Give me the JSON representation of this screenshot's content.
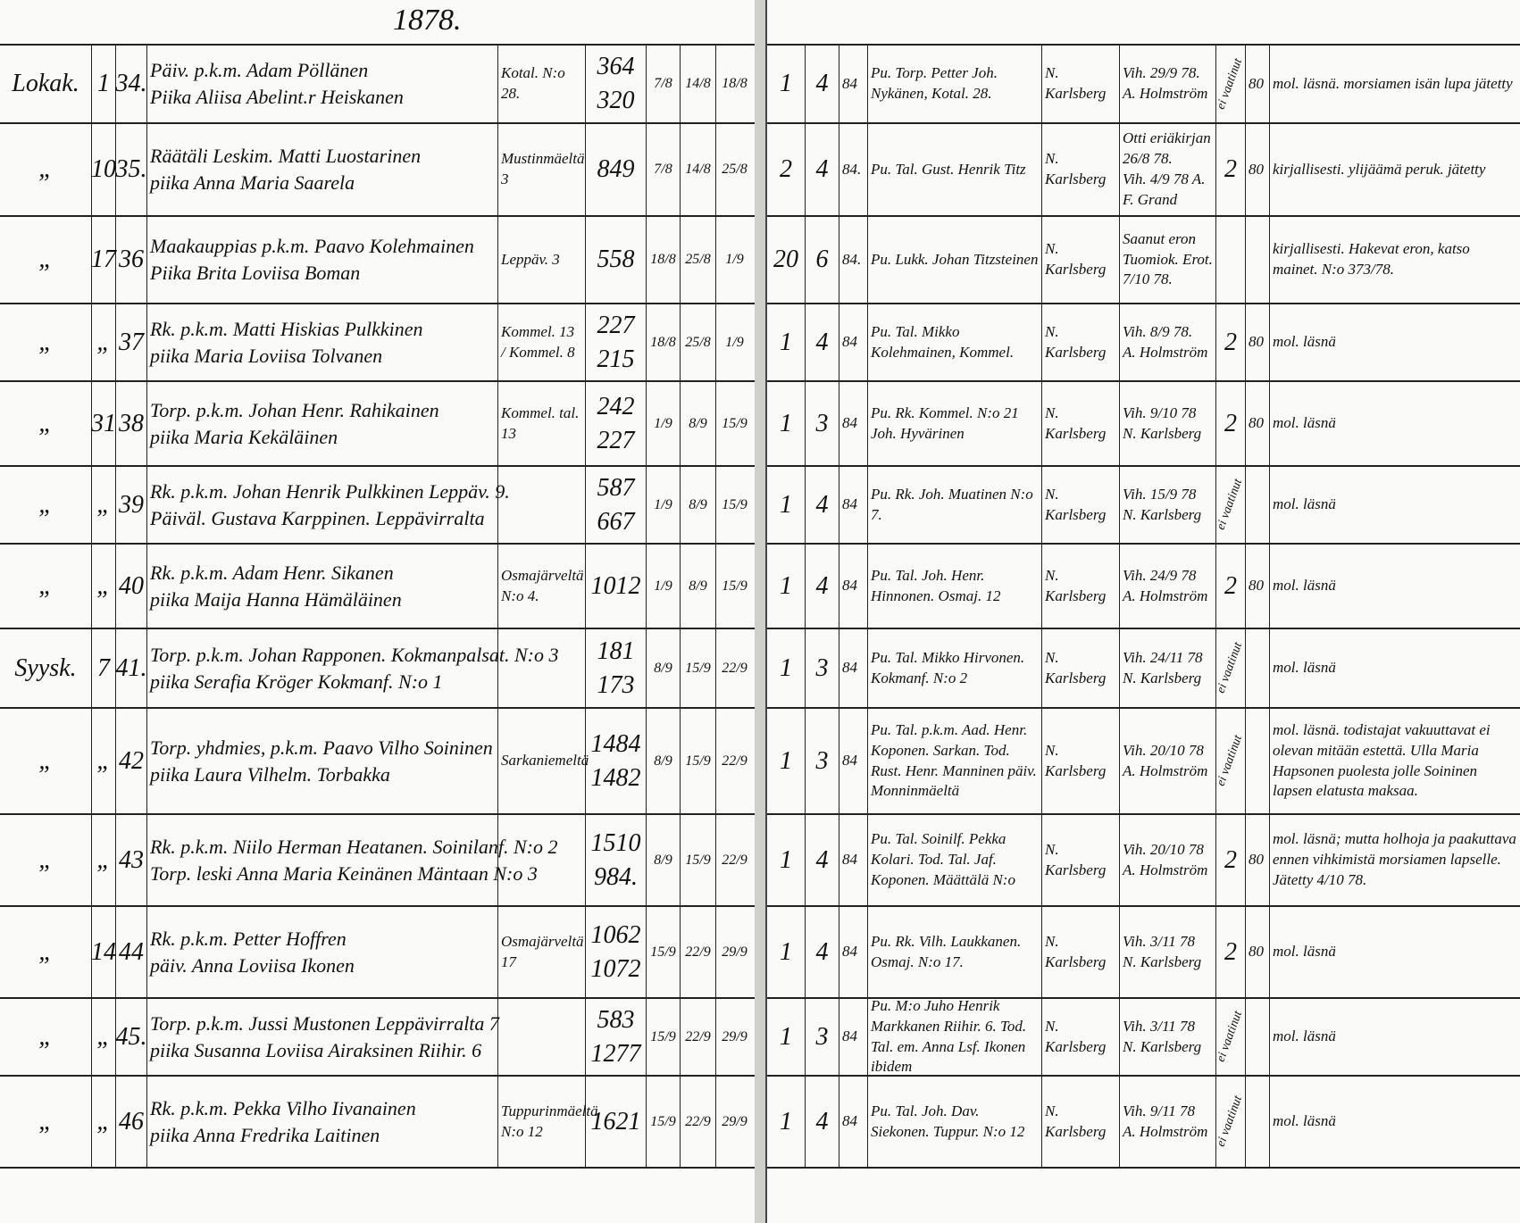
{
  "year": "1878.",
  "entries": [
    {
      "month": "Lokak.",
      "day": "1",
      "no": "34.",
      "groom": "Päiv. p.k.m. Adam Pöllänen",
      "bride": "Piika Aliisa Abelint.r Heiskanen",
      "residence": "Kotal. N:o 28.",
      "nums": [
        "364",
        "320"
      ],
      "banns": [
        "7/8",
        "14/8",
        "18/8"
      ],
      "a": "1",
      "b": "4",
      "c": "84",
      "witness": "Pu. Torp. Petter Joh. Nykänen, Kotal. 28.",
      "official": "N. Karlsberg",
      "vih": [
        "Vih. 29/9 78.",
        "A. Holmström"
      ],
      "x": "",
      "y": "80",
      "ei": "ei vaatinut",
      "notes": "mol. läsnä. morsiamen isän lupa jätetty"
    },
    {
      "month": "„",
      "day": "10",
      "no": "35.",
      "groom": "Räätäli Leskim. Matti Luostarinen",
      "bride": "piika Anna Maria Saarela",
      "residence": "Mustinmäeltä 3",
      "nums": [
        "849",
        ""
      ],
      "banns": [
        "7/8",
        "14/8",
        "25/8"
      ],
      "a": "2",
      "b": "4",
      "c": "84.",
      "witness": "Pu. Tal. Gust. Henrik Titz",
      "official": "N. Karlsberg",
      "vih": [
        "Otti eriäkirjan 26/8 78.",
        "Vih. 4/9 78 A. F. Grand"
      ],
      "x": "2",
      "y": "80",
      "ei": "",
      "notes": "kirjallisesti. ylijäämä peruk. jätetty"
    },
    {
      "month": "„",
      "day": "17",
      "no": "36",
      "groom": "Maakauppias p.k.m. Paavo Kolehmainen",
      "bride": "Piika Brita Loviisa Boman",
      "residence": "Leppäv. 3",
      "nums": [
        "558",
        ""
      ],
      "banns": [
        "18/8",
        "25/8",
        "1/9"
      ],
      "a": "20",
      "b": "6",
      "c": "84.",
      "witness": "Pu. Lukk. Johan Titzsteinen",
      "official": "N. Karlsberg",
      "vih": [
        "Saanut eron",
        "Tuomiok. Erot. 7/10 78."
      ],
      "x": "",
      "y": "",
      "ei": "",
      "notes": "kirjallisesti. Hakevat eron, katso mainet. N:o 373/78."
    },
    {
      "month": "„",
      "day": "„",
      "no": "37",
      "groom": "Rk. p.k.m. Matti Hiskias Pulkkinen",
      "bride": "piika Maria Loviisa Tolvanen",
      "residence": "Kommel. 13 / Kommel. 8",
      "nums": [
        "227",
        "215"
      ],
      "banns": [
        "18/8",
        "25/8",
        "1/9"
      ],
      "a": "1",
      "b": "4",
      "c": "84",
      "witness": "Pu. Tal. Mikko Kolehmainen, Kommel.",
      "official": "N. Karlsberg",
      "vih": [
        "Vih. 8/9 78.",
        "A. Holmström"
      ],
      "x": "2",
      "y": "80",
      "ei": "",
      "notes": "mol. läsnä"
    },
    {
      "month": "„",
      "day": "31",
      "no": "38",
      "groom": "Torp. p.k.m. Johan Henr. Rahikainen",
      "bride": "piika Maria Kekäläinen",
      "residence": "Kommel. tal. 13",
      "nums": [
        "242",
        "227"
      ],
      "banns": [
        "1/9",
        "8/9",
        "15/9"
      ],
      "a": "1",
      "b": "3",
      "c": "84",
      "witness": "Pu. Rk. Kommel. N:o 21 Joh. Hyvärinen",
      "official": "N. Karlsberg",
      "vih": [
        "Vih. 9/10 78",
        "N. Karlsberg"
      ],
      "x": "2",
      "y": "80",
      "ei": "",
      "notes": "mol. läsnä"
    },
    {
      "month": "„",
      "day": "„",
      "no": "39",
      "groom": "Rk. p.k.m. Johan Henrik Pulkkinen Leppäv. 9.",
      "bride": "Päiväl. Gustava Karppinen. Leppävirralta",
      "residence": "",
      "nums": [
        "587",
        "667"
      ],
      "banns": [
        "1/9",
        "8/9",
        "15/9"
      ],
      "a": "1",
      "b": "4",
      "c": "84",
      "witness": "Pu. Rk. Joh. Muatinen N:o 7.",
      "official": "N. Karlsberg",
      "vih": [
        "Vih. 15/9 78",
        "N. Karlsberg"
      ],
      "x": "",
      "y": "",
      "ei": "ei vaatinut",
      "notes": "mol. läsnä"
    },
    {
      "month": "„",
      "day": "„",
      "no": "40",
      "groom": "Rk. p.k.m. Adam Henr. Sikanen",
      "bride": "piika Maija Hanna Hämäläinen",
      "residence": "Osmajärveltä N:o 4.",
      "nums": [
        "1012",
        ""
      ],
      "banns": [
        "1/9",
        "8/9",
        "15/9"
      ],
      "a": "1",
      "b": "4",
      "c": "84",
      "witness": "Pu. Tal. Joh. Henr. Hinnonen. Osmaj. 12",
      "official": "N. Karlsberg",
      "vih": [
        "Vih. 24/9 78",
        "A. Holmström"
      ],
      "x": "2",
      "y": "80",
      "ei": "",
      "notes": "mol. läsnä"
    },
    {
      "month": "Syysk.",
      "day": "7",
      "no": "41.",
      "groom": "Torp. p.k.m. Johan Rapponen. Kokmanpalsat. N:o 3",
      "bride": "piika Serafia Kröger Kokmanf. N:o 1",
      "residence": "",
      "nums": [
        "181",
        "173"
      ],
      "banns": [
        "8/9",
        "15/9",
        "22/9"
      ],
      "a": "1",
      "b": "3",
      "c": "84",
      "witness": "Pu. Tal. Mikko Hirvonen. Kokmanf. N:o 2",
      "official": "N. Karlsberg",
      "vih": [
        "Vih. 24/11 78",
        "N. Karlsberg"
      ],
      "x": "",
      "y": "",
      "ei": "ei vaatinut",
      "notes": "mol. läsnä"
    },
    {
      "month": "„",
      "day": "„",
      "no": "42",
      "groom": "Torp. yhdmies, p.k.m. Paavo Vilho Soininen",
      "bride": "piika Laura Vilhelm. Torbakka",
      "residence": "Sarkaniemeltä",
      "nums": [
        "1484",
        "1482"
      ],
      "banns": [
        "8/9",
        "15/9",
        "22/9"
      ],
      "a": "1",
      "b": "3",
      "c": "84",
      "witness": "Pu. Tal. p.k.m. Aad. Henr. Koponen. Sarkan. Tod. Rust. Henr. Manninen päiv. Monninmäeltä",
      "official": "N. Karlsberg",
      "vih": [
        "Vih. 20/10 78",
        "A. Holmström"
      ],
      "x": "",
      "y": "",
      "ei": "ei vaatinut",
      "notes": "mol. läsnä. todistajat vakuuttavat ei olevan mitään estettä. Ulla Maria Hapsonen puolesta jolle Soininen lapsen elatusta maksaa."
    },
    {
      "month": "„",
      "day": "„",
      "no": "43",
      "groom": "Rk. p.k.m. Niilo Herman Heatanen. Soinilanf. N:o 2",
      "bride": "Torp. leski Anna Maria Keinänen Mäntaan N:o 3",
      "residence": "",
      "nums": [
        "1510",
        "984."
      ],
      "banns": [
        "8/9",
        "15/9",
        "22/9"
      ],
      "a": "1",
      "b": "4",
      "c": "84",
      "witness": "Pu. Tal. Soinilf. Pekka Kolari. Tod. Tal. Jaf. Koponen. Määttälä N:o",
      "official": "N. Karlsberg",
      "vih": [
        "Vih. 20/10 78",
        "A. Holmström"
      ],
      "x": "2",
      "y": "80",
      "ei": "",
      "notes": "mol. läsnä; mutta holhoja ja paakuttava ennen vihkimistä morsiamen lapselle. Jätetty 4/10 78."
    },
    {
      "month": "„",
      "day": "14",
      "no": "44",
      "groom": "Rk. p.k.m. Petter Hoffren",
      "bride": "päiv. Anna Loviisa Ikonen",
      "residence": "Osmajärveltä 17",
      "nums": [
        "1062",
        "1072"
      ],
      "banns": [
        "15/9",
        "22/9",
        "29/9"
      ],
      "a": "1",
      "b": "4",
      "c": "84",
      "witness": "Pu. Rk. Vilh. Laukkanen. Osmaj. N:o 17.",
      "official": "N. Karlsberg",
      "vih": [
        "Vih. 3/11 78",
        "N. Karlsberg"
      ],
      "x": "2",
      "y": "80",
      "ei": "",
      "notes": "mol. läsnä"
    },
    {
      "month": "„",
      "day": "„",
      "no": "45.",
      "groom": "Torp. p.k.m. Jussi Mustonen Leppävirralta 7",
      "bride": "piika Susanna Loviisa Airaksinen Riihir. 6",
      "residence": "",
      "nums": [
        "583",
        "1277"
      ],
      "banns": [
        "15/9",
        "22/9",
        "29/9"
      ],
      "a": "1",
      "b": "3",
      "c": "84",
      "witness": "Pu. M:o Juho Henrik Markkanen Riihir. 6. Tod. Tal. em. Anna Lsf. Ikonen ibidem",
      "official": "N. Karlsberg",
      "vih": [
        "Vih. 3/11 78",
        "N. Karlsberg"
      ],
      "x": "",
      "y": "",
      "ei": "ei vaatinut",
      "notes": "mol. läsnä"
    },
    {
      "month": "„",
      "day": "„",
      "no": "46",
      "groom": "Rk. p.k.m. Pekka Vilho Iivanainen",
      "bride": "piika Anna Fredrika Laitinen",
      "residence": "Tuppurinmäeltä N:o 12",
      "nums": [
        "1621",
        ""
      ],
      "banns": [
        "15/9",
        "22/9",
        "29/9"
      ],
      "a": "1",
      "b": "4",
      "c": "84",
      "witness": "Pu. Tal. Joh. Dav. Siekonen. Tuppur. N:o 12",
      "official": "N. Karlsberg",
      "vih": [
        "Vih. 9/11 78",
        "A. Holmström"
      ],
      "x": "",
      "y": "",
      "ei": "ei vaatinut",
      "notes": "mol. läsnä"
    }
  ]
}
